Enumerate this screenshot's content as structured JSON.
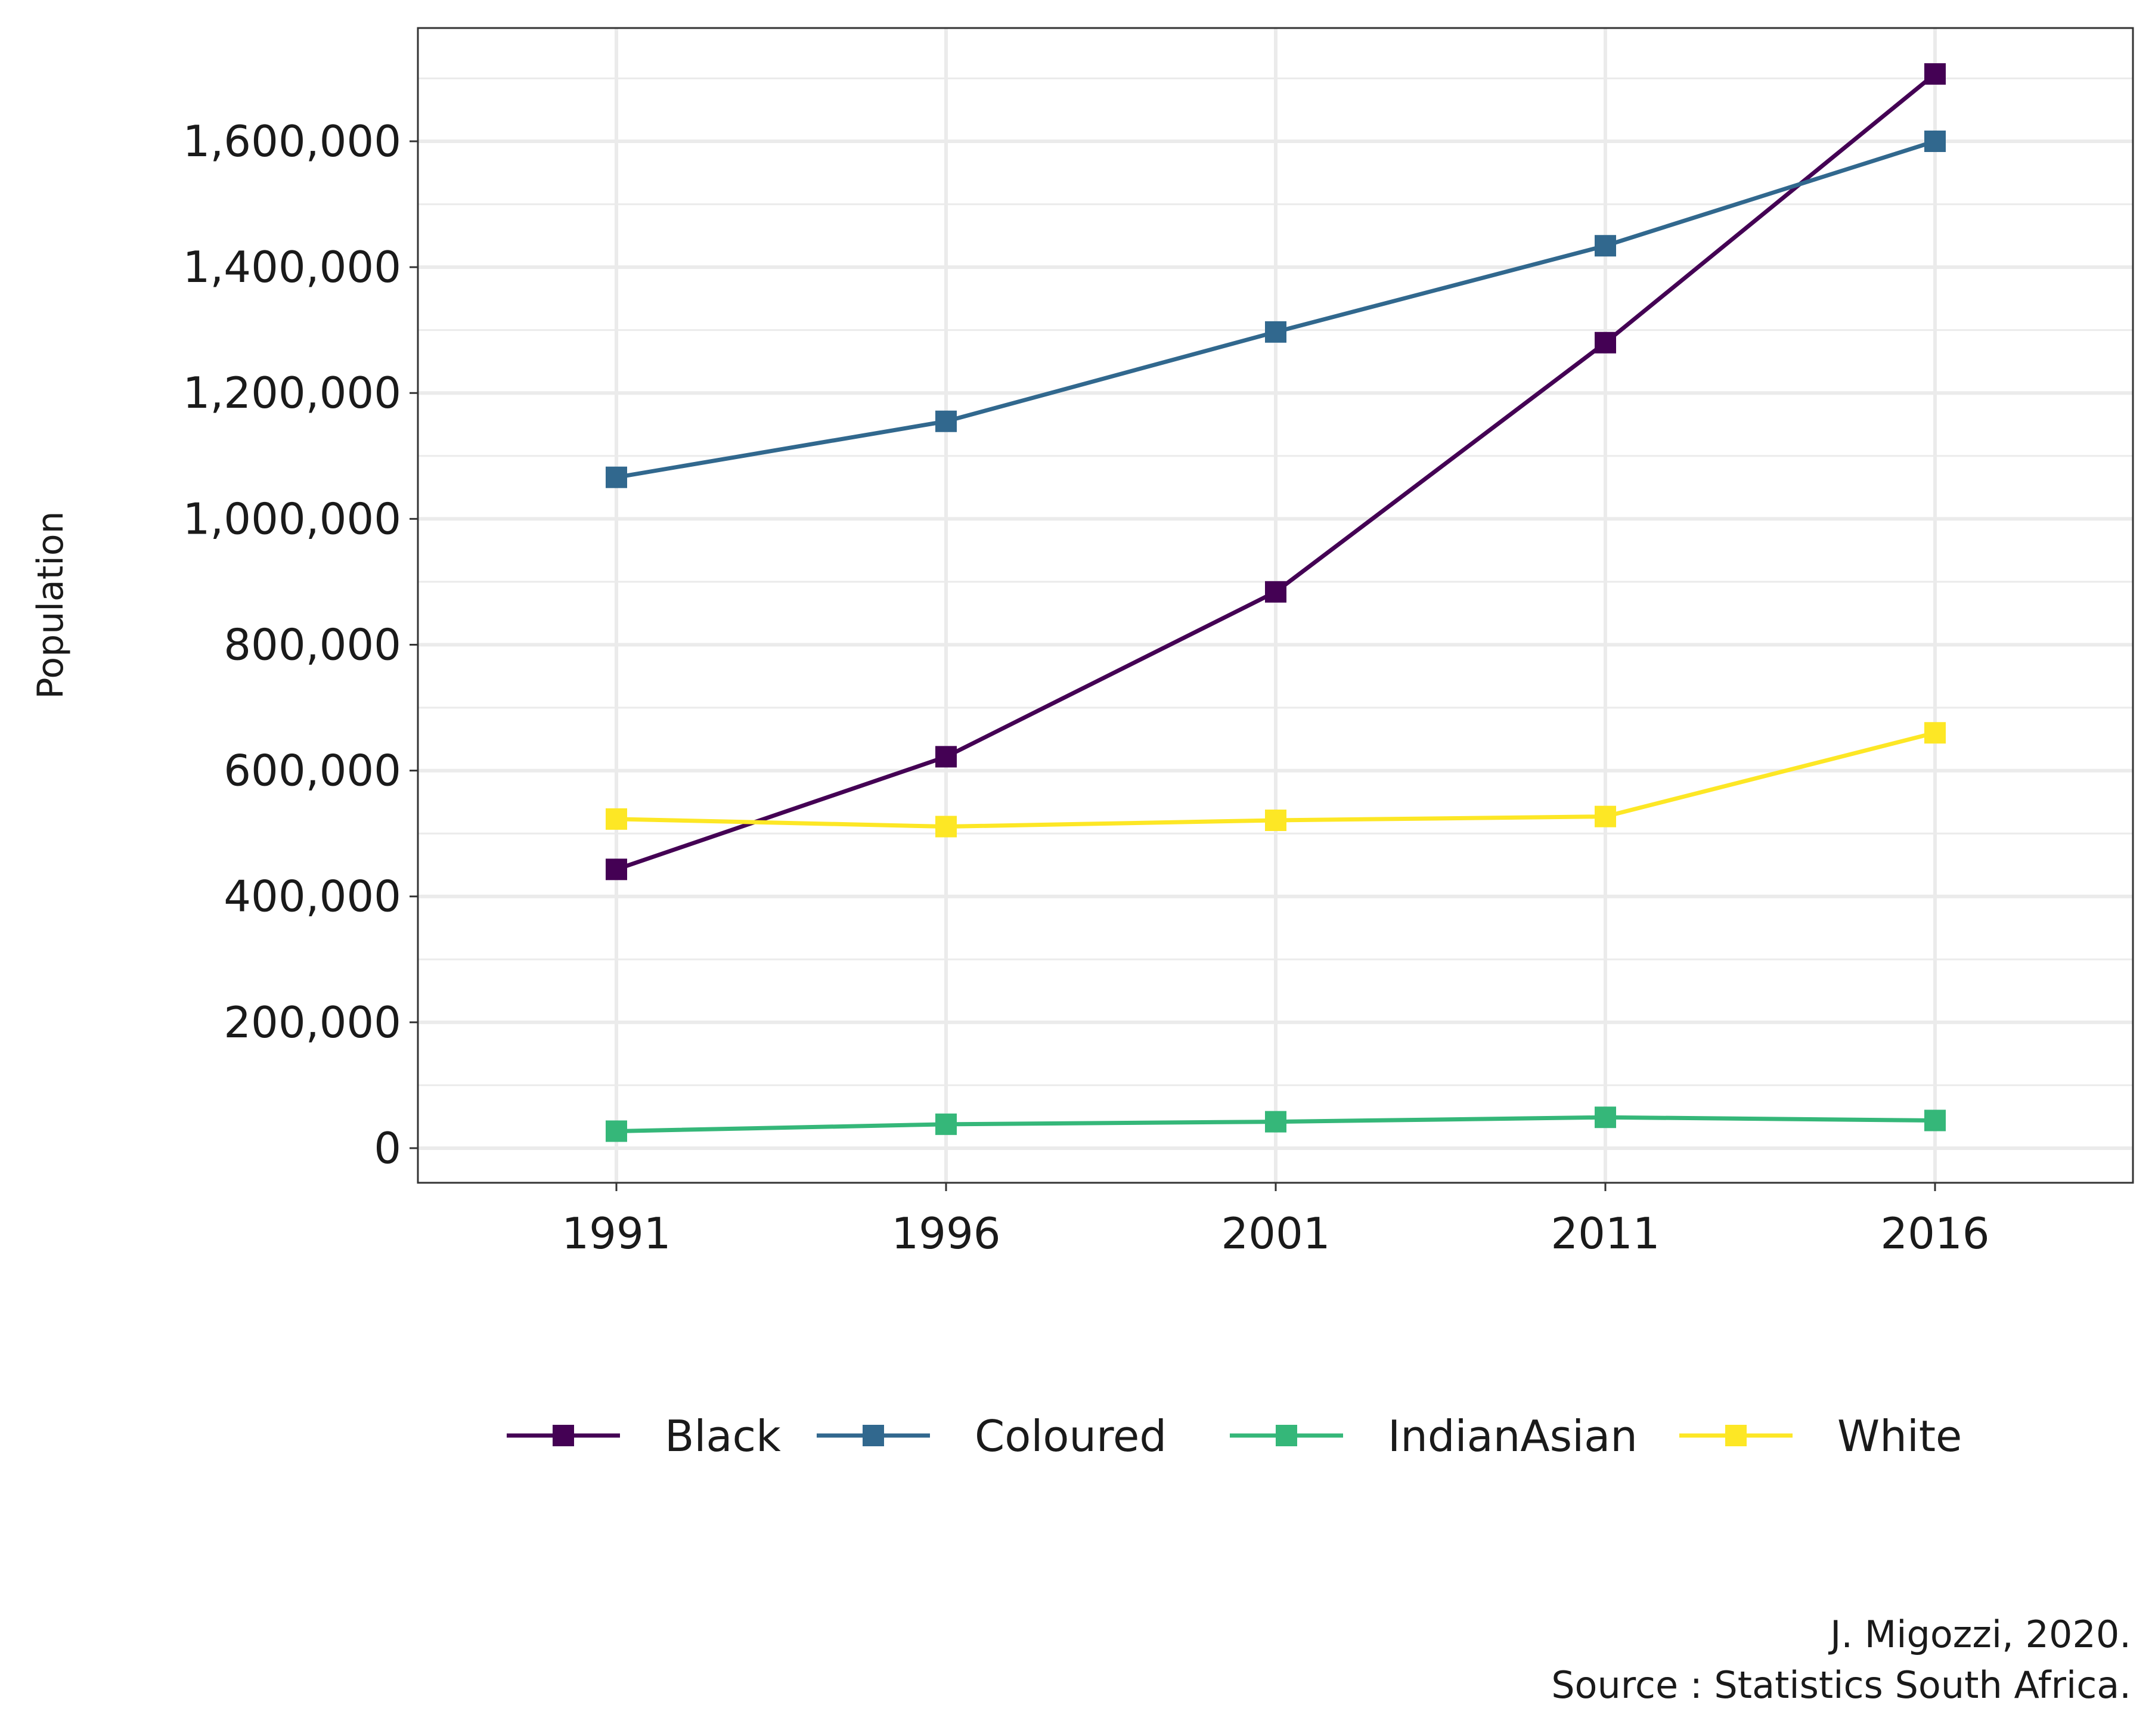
{
  "chart_data": {
    "type": "line",
    "title": "",
    "xlabel": "",
    "ylabel": "Population",
    "categories": [
      "1991",
      "1996",
      "2001",
      "2011",
      "2016"
    ],
    "ylim": [
      -55000,
      1780000
    ],
    "y_ticks": [
      0,
      200000,
      400000,
      600000,
      800000,
      1000000,
      1200000,
      1400000,
      1600000
    ],
    "y_tick_labels": [
      "0",
      "200,000",
      "400,000",
      "600,000",
      "800,000",
      "1,000,000",
      "1,200,000",
      "1,400,000",
      "1,600,000"
    ],
    "grid": true,
    "legend_position": "bottom",
    "marker": "square",
    "series": [
      {
        "name": "Black",
        "color": "#440154",
        "values": [
          443000,
          622000,
          884000,
          1280000,
          1707000
        ]
      },
      {
        "name": "Coloured",
        "color": "#31688E",
        "values": [
          1066000,
          1155000,
          1297000,
          1434000,
          1600000
        ]
      },
      {
        "name": "IndianAsian",
        "color": "#35B779",
        "values": [
          27000,
          38000,
          42000,
          49000,
          44000
        ]
      },
      {
        "name": "White",
        "color": "#FDE725",
        "values": [
          523000,
          511000,
          521000,
          527000,
          660000
        ]
      }
    ]
  },
  "caption": {
    "line1": "J. Migozzi, 2020.",
    "line2": "Source : Statistics South Africa."
  },
  "colors": {
    "grid": "#ebebeb",
    "panel_border": "#333333",
    "text": "#1a1a1a"
  }
}
